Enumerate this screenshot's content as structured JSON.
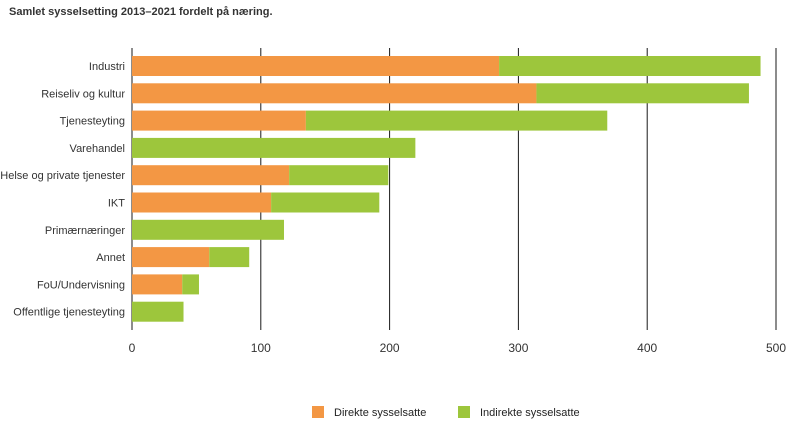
{
  "chart_data": {
    "type": "bar",
    "orientation": "horizontal",
    "stacked": true,
    "title": "Samlet sysselsetting 2013–2021 fordelt på næring.",
    "categories": [
      "Industri",
      "Reiseliv og kultur",
      "Tjenesteyting",
      "Varehandel",
      "Helse og private tjenester",
      "IKT",
      "Primærnæringer",
      "Annet",
      "FoU/Undervisning",
      "Offentlige tjenesteyting"
    ],
    "series": [
      {
        "name": "Direkte sysselsatte",
        "color": "#f39744",
        "values": [
          285,
          314,
          135,
          0,
          122,
          108,
          0,
          60,
          39,
          0
        ]
      },
      {
        "name": "Indirekte sysselsatte",
        "color": "#9dc63c",
        "values": [
          203,
          165,
          234,
          220,
          77,
          84,
          118,
          31,
          13,
          40
        ]
      }
    ],
    "xlim": [
      0,
      500
    ],
    "xticks": [
      "0",
      "100",
      "200",
      "300",
      "400",
      "500"
    ],
    "grid": "vertical",
    "legend": "bottom-center"
  }
}
